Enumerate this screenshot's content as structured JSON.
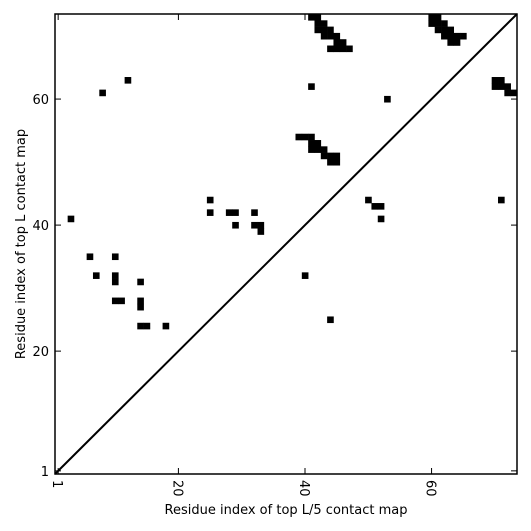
{
  "chart_data": {
    "type": "heatmap",
    "title": "",
    "xlabel": "Residue index of top L/5 contact map",
    "ylabel": "Residue index of top L contact map",
    "xlim": [
      0.5,
      73.5
    ],
    "ylim": [
      0.5,
      73.5
    ],
    "x_ticks": [
      1,
      20,
      40,
      60
    ],
    "y_ticks": [
      1,
      20,
      40,
      60
    ],
    "x_tick_rotation": "vertical",
    "grid": false,
    "colors": {
      "contact": "#000000",
      "background": "#ffffff",
      "diagonal": "#000000"
    },
    "diagonal_line": true,
    "contacts": [
      [
        41,
        73
      ],
      [
        42,
        73
      ],
      [
        43,
        72
      ],
      [
        44,
        71
      ],
      [
        45,
        70
      ],
      [
        46,
        69
      ],
      [
        47,
        68
      ],
      [
        42,
        72
      ],
      [
        43,
        71
      ],
      [
        44,
        70
      ],
      [
        45,
        69
      ],
      [
        44,
        68
      ],
      [
        45,
        68
      ],
      [
        46,
        68
      ],
      [
        43,
        70
      ],
      [
        42,
        71
      ],
      [
        60,
        73
      ],
      [
        61,
        73
      ],
      [
        62,
        72
      ],
      [
        63,
        71
      ],
      [
        64,
        70
      ],
      [
        65,
        70
      ],
      [
        61,
        72
      ],
      [
        62,
        71
      ],
      [
        63,
        70
      ],
      [
        63,
        69
      ],
      [
        64,
        69
      ],
      [
        60,
        72
      ],
      [
        61,
        71
      ],
      [
        62,
        70
      ],
      [
        70,
        63
      ],
      [
        71,
        63
      ],
      [
        70,
        62
      ],
      [
        71,
        62
      ],
      [
        72,
        62
      ],
      [
        72,
        61
      ],
      [
        73,
        61
      ],
      [
        12,
        63
      ],
      [
        8,
        61
      ],
      [
        41,
        62
      ],
      [
        53,
        60
      ],
      [
        39,
        54
      ],
      [
        40,
        54
      ],
      [
        41,
        54
      ],
      [
        41,
        53
      ],
      [
        42,
        53
      ],
      [
        42,
        52
      ],
      [
        43,
        52
      ],
      [
        43,
        51
      ],
      [
        44,
        51
      ],
      [
        44,
        50
      ],
      [
        45,
        50
      ],
      [
        45,
        51
      ],
      [
        41,
        52
      ],
      [
        3,
        41
      ],
      [
        25,
        44
      ],
      [
        25,
        42
      ],
      [
        28,
        42
      ],
      [
        29,
        42
      ],
      [
        32,
        42
      ],
      [
        29,
        40
      ],
      [
        32,
        40
      ],
      [
        33,
        40
      ],
      [
        33,
        39
      ],
      [
        50,
        44
      ],
      [
        51,
        43
      ],
      [
        52,
        43
      ],
      [
        52,
        41
      ],
      [
        71,
        44
      ],
      [
        6,
        35
      ],
      [
        10,
        35
      ],
      [
        7,
        32
      ],
      [
        10,
        32
      ],
      [
        10,
        31
      ],
      [
        14,
        31
      ],
      [
        10,
        28
      ],
      [
        11,
        28
      ],
      [
        14,
        28
      ],
      [
        14,
        27
      ],
      [
        14,
        24
      ],
      [
        15,
        24
      ],
      [
        18,
        24
      ],
      [
        40,
        32
      ],
      [
        44,
        25
      ]
    ]
  }
}
